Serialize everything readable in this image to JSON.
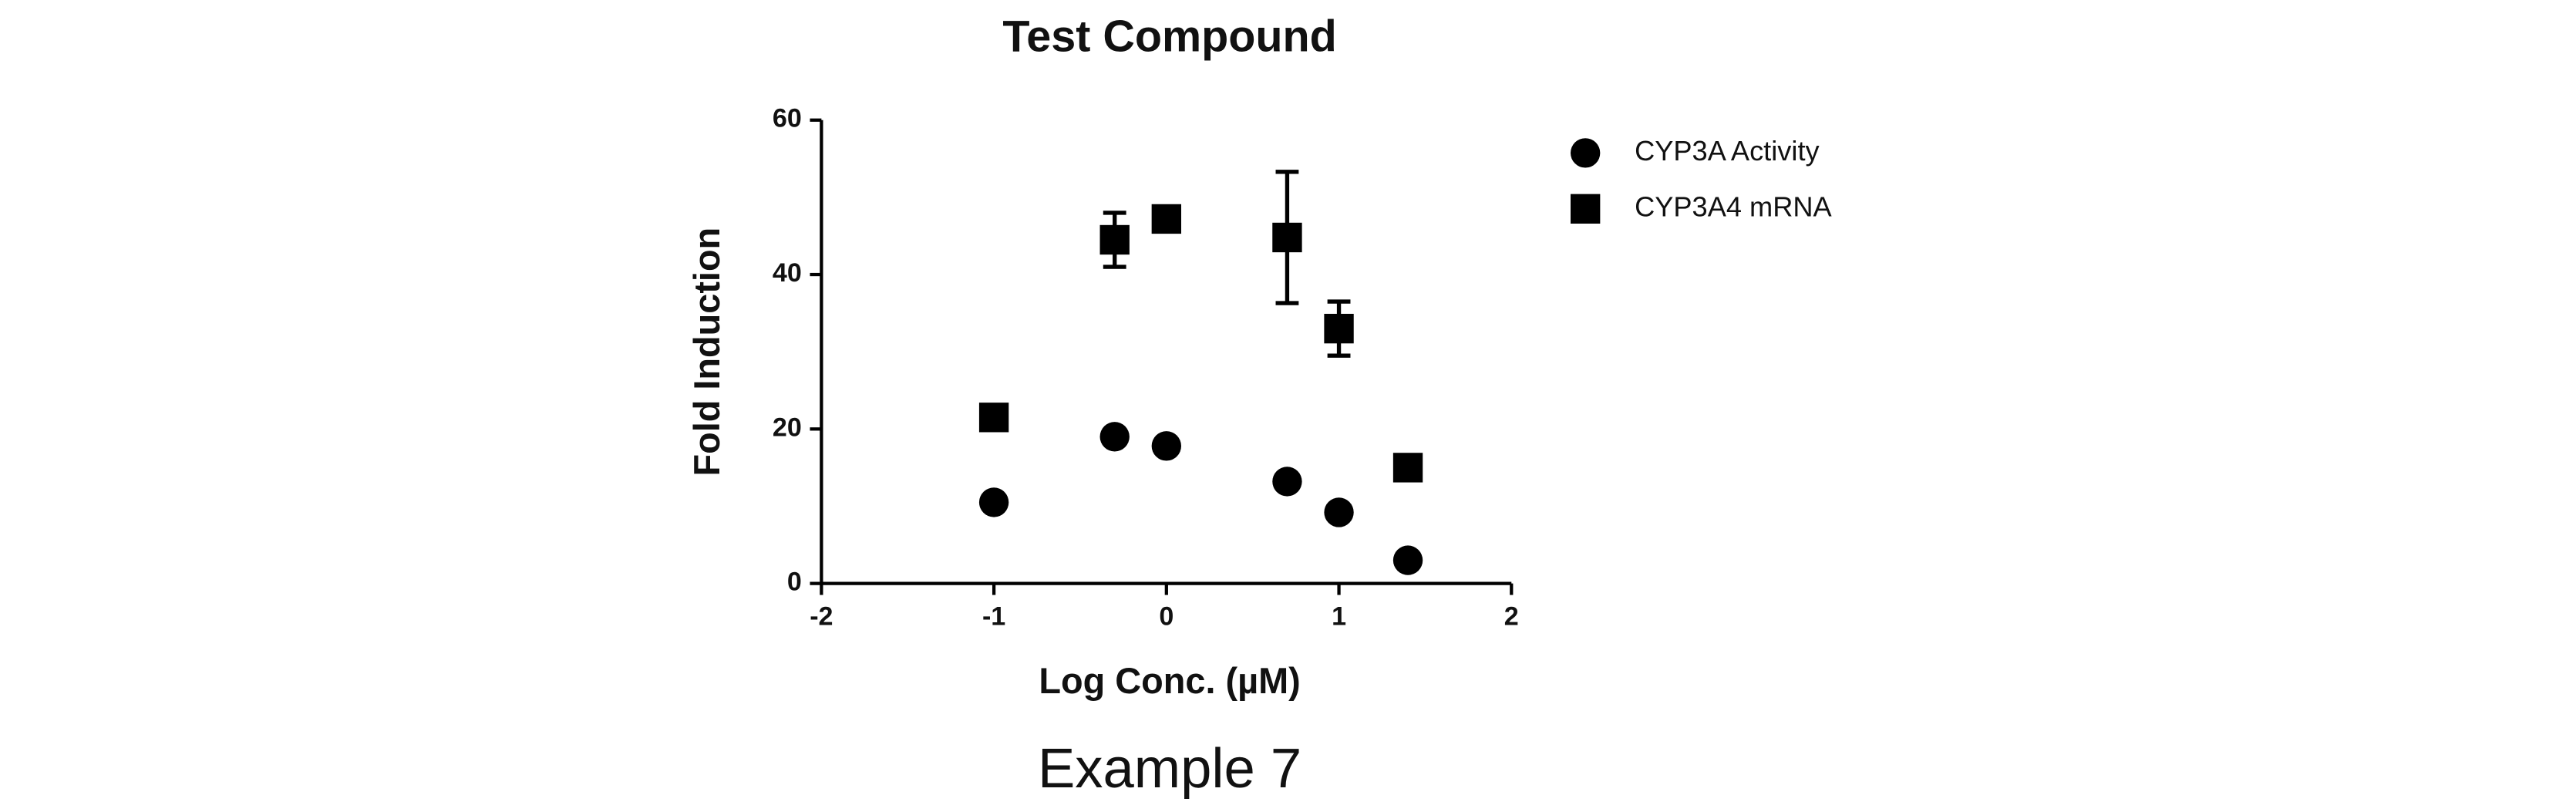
{
  "chart_data": {
    "type": "scatter",
    "title": "Test Compound",
    "caption": "Example 7",
    "xlabel": "Log Conc. (µM)",
    "ylabel": "Fold Induction",
    "xlim": [
      -2,
      2
    ],
    "xticks": [
      -2,
      -1,
      0,
      1,
      2
    ],
    "ylim": [
      0,
      60
    ],
    "yticks": [
      0,
      20,
      40,
      60
    ],
    "legend": "right",
    "series": [
      {
        "name": "CYP3A Activity",
        "marker": "circle",
        "color": "#000000",
        "x": [
          -1,
          -0.3,
          0,
          0.7,
          1,
          1.4
        ],
        "values": [
          10.5,
          19,
          17.8,
          13.2,
          9.2,
          3
        ]
      },
      {
        "name": "CYP3A4 mRNA",
        "marker": "square",
        "color": "#000000",
        "x": [
          -1,
          -0.3,
          0,
          0.7,
          1,
          1.4
        ],
        "values": [
          21.5,
          44.5,
          47.2,
          44.8,
          33,
          15
        ],
        "errors": [
          null,
          3.5,
          1,
          8.5,
          3.5,
          null
        ]
      }
    ]
  }
}
